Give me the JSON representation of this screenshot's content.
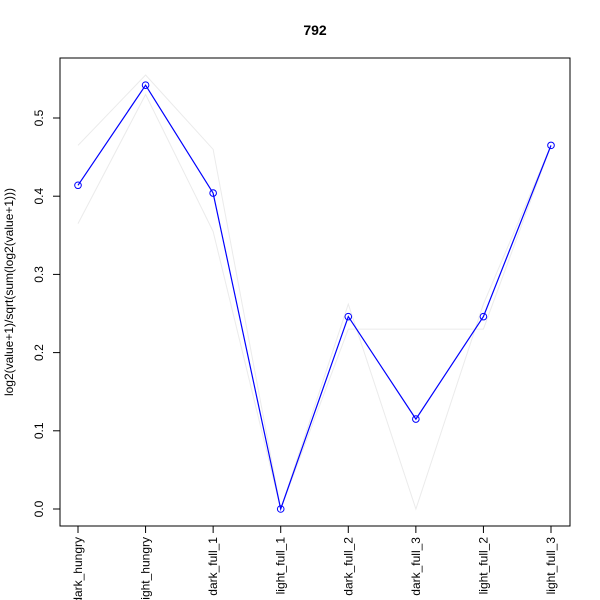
{
  "chart_data": {
    "type": "line",
    "title": "792",
    "xlabel": "",
    "ylabel": "log2(value+1)/sqrt(sum(log2(value+1)))",
    "categories": [
      "dark_hungry",
      "light_hungry",
      "dark_full_1",
      "light_full_1",
      "dark_full_2",
      "dark_full_3",
      "light_full_2",
      "light_full_3"
    ],
    "ylim": [
      -0.02,
      0.58
    ],
    "yticks": [
      0.0,
      0.1,
      0.2,
      0.3,
      0.4,
      0.5
    ],
    "ytick_labels": [
      "0.0",
      "0.1",
      "0.2",
      "0.3",
      "0.4",
      "0.5"
    ],
    "grid": false,
    "series": [
      {
        "values": [
          0.414,
          0.542,
          0.404,
          0.0,
          0.246,
          0.115,
          0.246,
          0.465
        ],
        "color": "#0000ff",
        "markers": "open-circle",
        "role": "main"
      },
      {
        "values": [
          0.465,
          0.555,
          0.46,
          0.0,
          0.23,
          0.23,
          0.23,
          0.465
        ],
        "color": "#ebebeb",
        "role": "background"
      },
      {
        "values": [
          0.365,
          0.53,
          0.355,
          0.0,
          0.262,
          0.0,
          0.262,
          0.465
        ],
        "color": "#ebebeb",
        "role": "background"
      }
    ]
  }
}
